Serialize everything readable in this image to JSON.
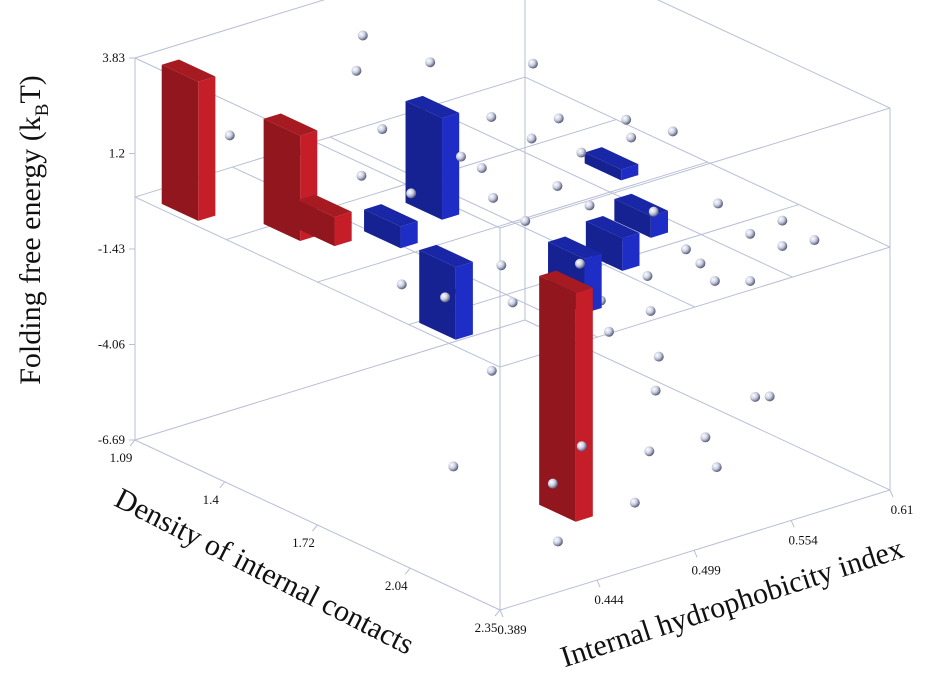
{
  "chart_data": {
    "type": "bar3d-scatter3d",
    "x_label": "Internal hydrophobicity index",
    "y_label": "Density of internal contacts",
    "z_label": "Folding free energy (k",
    "z_label_sub": "B",
    "z_label_end": "T)",
    "xlim": [
      0.389,
      0.61
    ],
    "xticks": [
      0.389,
      0.444,
      0.499,
      0.554,
      0.61
    ],
    "ylim": [
      1.09,
      2.35
    ],
    "yticks": [
      1.09,
      1.4,
      1.72,
      2.04,
      2.35
    ],
    "zlim": [
      -6.69,
      3.83
    ],
    "zticks": [
      -6.69,
      -4.06,
      -1.43,
      1.2,
      3.83
    ],
    "bars": {
      "x": [
        0.398,
        0.418,
        0.426,
        0.447,
        0.452,
        0.482,
        0.474,
        0.502,
        0.53,
        0.556,
        0.572
      ],
      "y": [
        1.22,
        1.45,
        1.52,
        1.62,
        1.78,
        1.55,
        2.06,
        1.92,
        1.88,
        1.82,
        1.62
      ],
      "z": [
        3.83,
        2.9,
        0.8,
        0.6,
        -2.0,
        2.8,
        -6.3,
        -1.5,
        -0.9,
        -0.6,
        0.3
      ],
      "colors": [
        "#d0202a",
        "#d0202a",
        "#d0202a",
        "#1f2fd0",
        "#1f2fd0",
        "#1f2fd0",
        "#d0202a",
        "#1f2fd0",
        "#1f2fd0",
        "#1f2fd0",
        "#1f2fd0"
      ]
    },
    "points": {
      "color": "#c9cde0",
      "x": [
        0.4,
        0.43,
        0.45,
        0.47,
        0.49,
        0.5,
        0.51,
        0.52,
        0.53,
        0.54,
        0.55,
        0.56,
        0.57,
        0.58,
        0.59,
        0.6,
        0.44,
        0.46,
        0.48,
        0.5,
        0.52,
        0.54,
        0.56,
        0.58,
        0.47,
        0.49,
        0.51,
        0.53,
        0.55,
        0.57,
        0.45,
        0.48,
        0.5,
        0.52,
        0.46,
        0.49,
        0.51,
        0.53,
        0.55,
        0.44,
        0.47,
        0.5,
        0.53,
        0.56,
        0.59,
        0.48,
        0.51,
        0.54,
        0.57,
        0.6,
        0.42,
        0.46,
        0.49,
        0.52,
        0.55,
        0.5,
        0.53,
        0.58,
        0.61,
        0.43
      ],
      "y": [
        1.35,
        1.4,
        1.5,
        1.55,
        1.6,
        1.65,
        1.7,
        1.75,
        1.8,
        1.85,
        1.9,
        1.95,
        2.0,
        2.05,
        2.1,
        2.15,
        1.7,
        1.75,
        1.8,
        1.85,
        1.9,
        1.95,
        2.0,
        2.05,
        1.45,
        1.5,
        1.55,
        1.6,
        1.65,
        1.7,
        1.95,
        2.0,
        2.05,
        2.1,
        2.2,
        2.25,
        2.15,
        2.2,
        2.25,
        1.85,
        1.9,
        1.95,
        2.0,
        2.05,
        2.1,
        1.3,
        1.35,
        1.4,
        1.45,
        1.5,
        2.0,
        2.1,
        2.2,
        2.3,
        2.3,
        1.2,
        1.25,
        1.3,
        1.6,
        2.3
      ],
      "z": [
        2.5,
        1.8,
        1.2,
        0.6,
        1.5,
        0.4,
        -0.2,
        0.8,
        0.3,
        -0.5,
        0.2,
        -0.8,
        0.5,
        -0.3,
        0.1,
        -0.4,
        -0.9,
        -1.2,
        -0.6,
        -1.4,
        -1.8,
        -2.2,
        -1.0,
        -1.6,
        2.0,
        1.0,
        0.7,
        1.4,
        0.9,
        1.2,
        -2.5,
        -3.0,
        -1.8,
        -2.6,
        -3.8,
        -4.2,
        -3.2,
        -4.6,
        -3.6,
        -0.7,
        -1.1,
        -0.3,
        -0.9,
        -1.3,
        -0.6,
        2.9,
        1.7,
        1.1,
        0.8,
        0.5,
        -4.5,
        -5.2,
        -5.8,
        -4.9,
        -3.4,
        3.2,
        2.2,
        1.6,
        0.4,
        -5.6
      ]
    }
  }
}
